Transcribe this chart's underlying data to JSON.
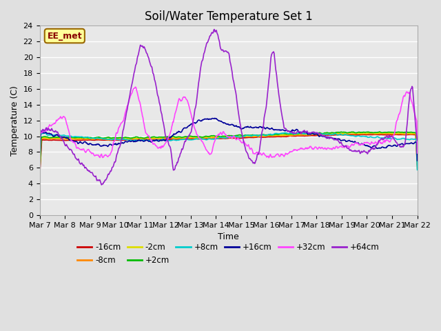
{
  "title": "Soil/Water Temperature Set 1",
  "xlabel": "Time",
  "ylabel": "Temperature (C)",
  "ylim": [
    0,
    24
  ],
  "yticks": [
    0,
    2,
    4,
    6,
    8,
    10,
    12,
    14,
    16,
    18,
    20,
    22,
    24
  ],
  "x_labels": [
    "Mar 7",
    "Mar 8",
    "Mar 9",
    "Mar 10",
    "Mar 11",
    "Mar 12",
    "Mar 13",
    "Mar 14",
    "Mar 15",
    "Mar 16",
    "Mar 17",
    "Mar 18",
    "Mar 19",
    "Mar 20",
    "Mar 21",
    "Mar 22"
  ],
  "series_labels": [
    "-16cm",
    "-8cm",
    "-2cm",
    "+2cm",
    "+8cm",
    "+16cm",
    "+32cm",
    "+64cm"
  ],
  "series_colors": [
    "#cc0000",
    "#ff8800",
    "#dddd00",
    "#00bb00",
    "#00cccc",
    "#000099",
    "#ff44ff",
    "#9922cc"
  ],
  "series_widths": [
    1.2,
    1.2,
    1.2,
    1.2,
    1.2,
    1.2,
    1.2,
    1.2
  ],
  "annotation_text": "EE_met",
  "background_color": "#e0e0e0",
  "plot_bg_color": "#e8e8e8",
  "grid_color": "#ffffff",
  "title_fontsize": 12,
  "label_fontsize": 9,
  "tick_fontsize": 8
}
